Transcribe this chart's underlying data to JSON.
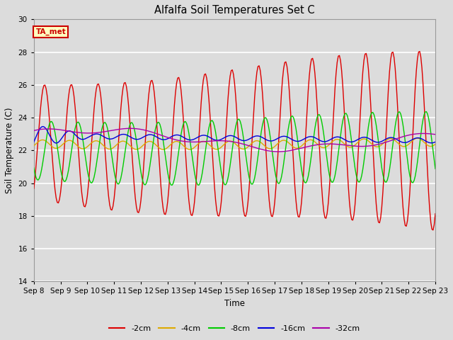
{
  "title": "Alfalfa Soil Temperatures Set C",
  "xlabel": "Time",
  "ylabel": "Soil Temperature (C)",
  "ylim": [
    14,
    30
  ],
  "xtick_labels": [
    "Sep 8",
    "Sep 9",
    "Sep 10",
    "Sep 11",
    "Sep 12",
    "Sep 13",
    "Sep 14",
    "Sep 15",
    "Sep 16",
    "Sep 17",
    "Sep 18",
    "Sep 19",
    "Sep 20",
    "Sep 21",
    "Sep 22",
    "Sep 23"
  ],
  "background_color": "#dcdcdc",
  "plot_bg_color": "#dcdcdc",
  "grid_color": "#ffffff",
  "legend_label": "TA_met",
  "legend_box_color": "#ffffc0",
  "legend_text_color": "#cc0000",
  "series": {
    "-2cm": {
      "color": "#dd0000",
      "lw": 1.0
    },
    "-4cm": {
      "color": "#ddaa00",
      "lw": 1.0
    },
    "-8cm": {
      "color": "#00cc00",
      "lw": 1.0
    },
    "-16cm": {
      "color": "#0000dd",
      "lw": 1.0
    },
    "-32cm": {
      "color": "#aa00aa",
      "lw": 1.0
    }
  }
}
